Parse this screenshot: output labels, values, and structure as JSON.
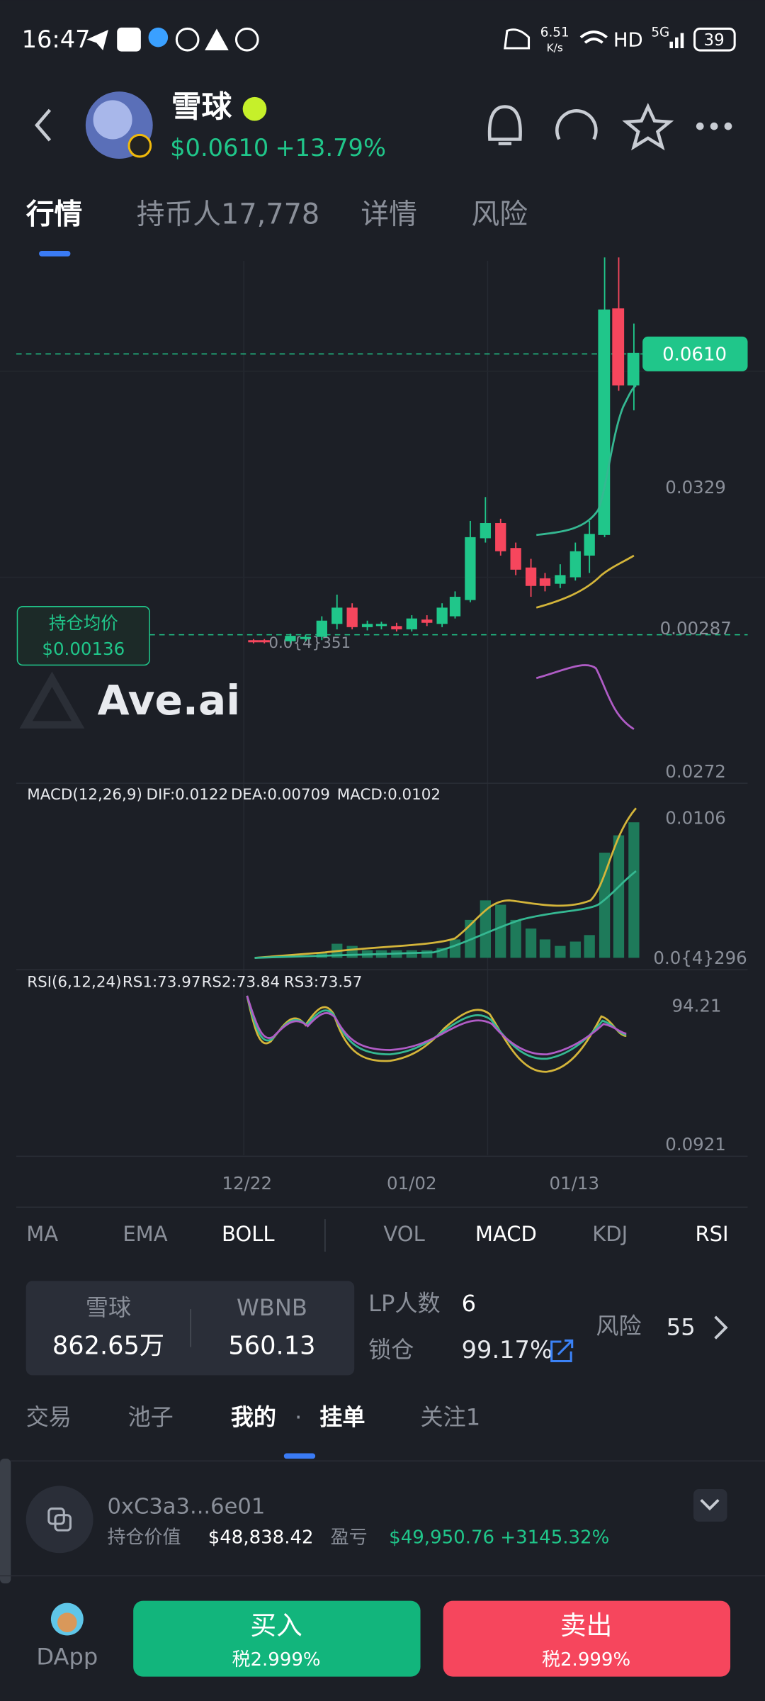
{
  "status_bar": {
    "time": "16:47",
    "speed": "6.51",
    "speed_unit": "K/s",
    "network": "HD",
    "signal": "5G",
    "battery": "39"
  },
  "header": {
    "name": "雪球",
    "price": "$0.0610",
    "change": "+13.79%"
  },
  "tabs": [
    "行情",
    "持币人17,778",
    "详情",
    "风险"
  ],
  "chart": {
    "price_tag": "0.0610",
    "axis_labels": [
      "0.0329",
      "0.00287",
      "0.0272"
    ],
    "avg_cost_label": "持仓均价",
    "avg_cost": "$0.00136",
    "low_label": "0.0{4}351",
    "watermark": "Ave.ai"
  },
  "macd": {
    "title": "MACD(12,26,9)",
    "dif": "DIF:0.0122",
    "dea": "DEA:0.00709",
    "macd": "MACD:0.0102",
    "axis_labels": [
      "0.0106",
      "0.0{4}296"
    ]
  },
  "rsi": {
    "title": "RSI(6,12,24)",
    "rs1": "RS1:73.97",
    "rs2": "RS2:73.84",
    "rs3": "RS3:73.57",
    "axis_labels": [
      "94.21",
      "0.0921"
    ]
  },
  "dates": [
    "12/22",
    "01/02",
    "01/13"
  ],
  "indicators": [
    "MA",
    "EMA",
    "BOLL",
    "VOL",
    "MACD",
    "KDJ",
    "RSI"
  ],
  "pool": {
    "token_name": "雪球",
    "token_amount": "862.65万",
    "pair_name": "WBNB",
    "pair_amount": "560.13",
    "lp_label": "LP人数",
    "lp_count": "6",
    "lock_label": "锁仓",
    "lock_value": "99.17%",
    "risk_label": "风险",
    "risk_score": "55"
  },
  "section_tabs": [
    "交易",
    "池子",
    "我的",
    "·",
    "挂单",
    "关注1"
  ],
  "holding": {
    "address": "0xC3a3...6e01",
    "value_label": "持仓价值",
    "value": "$48,838.42",
    "pnl_label": "盈亏",
    "pnl": "$49,950.76 +3145.32%"
  },
  "bottom": {
    "dapp": "DApp",
    "buy": "买入",
    "buy_tax": "税2.999%",
    "sell": "卖出",
    "sell_tax": "税2.999%"
  }
}
